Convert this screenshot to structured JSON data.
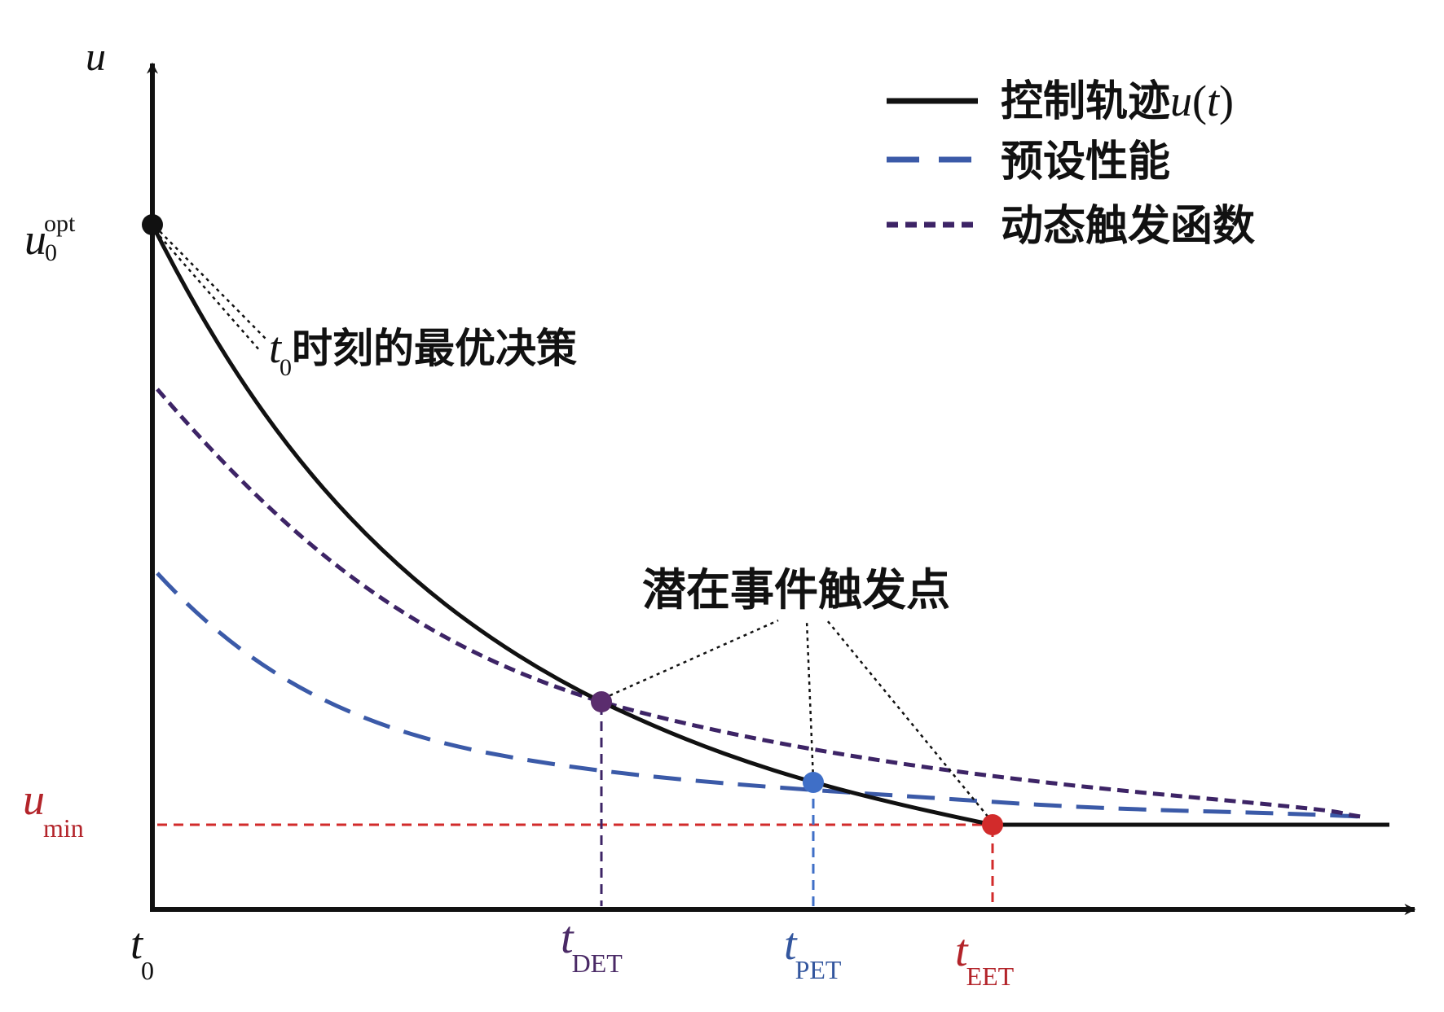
{
  "axes": {
    "y_label": "u",
    "x_origin_label": {
      "main": "t",
      "sub": "0"
    }
  },
  "y_ticks": {
    "u0opt": {
      "main": "u",
      "sub": "0",
      "sup": "opt"
    },
    "umin": {
      "main": "u",
      "sub": "min"
    }
  },
  "x_ticks": {
    "det": {
      "main": "t",
      "sub": "DET"
    },
    "pet": {
      "main": "t",
      "sub": "PET"
    },
    "eet": {
      "main": "t",
      "sub": "EET"
    }
  },
  "legend": {
    "control": {
      "text": "控制轨迹",
      "italic_u": "u",
      "paren_open": "(",
      "italic_t": "t",
      "paren_close": ")"
    },
    "preset": "预设性能",
    "dynamic": "动态触发函数"
  },
  "annotations": {
    "optimal": {
      "main": "t",
      "sub": "0",
      "text": "时刻的最优决策"
    },
    "trigger_points": "潜在事件触发点"
  },
  "colors": {
    "control": "#111111",
    "preset": "#3b5aa8",
    "dynamic": "#3d2466",
    "umin_line": "#d22b2b",
    "det_point": "#5b2d6e",
    "pet_point": "#3f6fc7",
    "eet_point": "#d22b2b",
    "umin_label": "#b3242a",
    "det_label": "#4a2a66",
    "pet_label": "#33569e",
    "eet_label": "#b3242a"
  }
}
